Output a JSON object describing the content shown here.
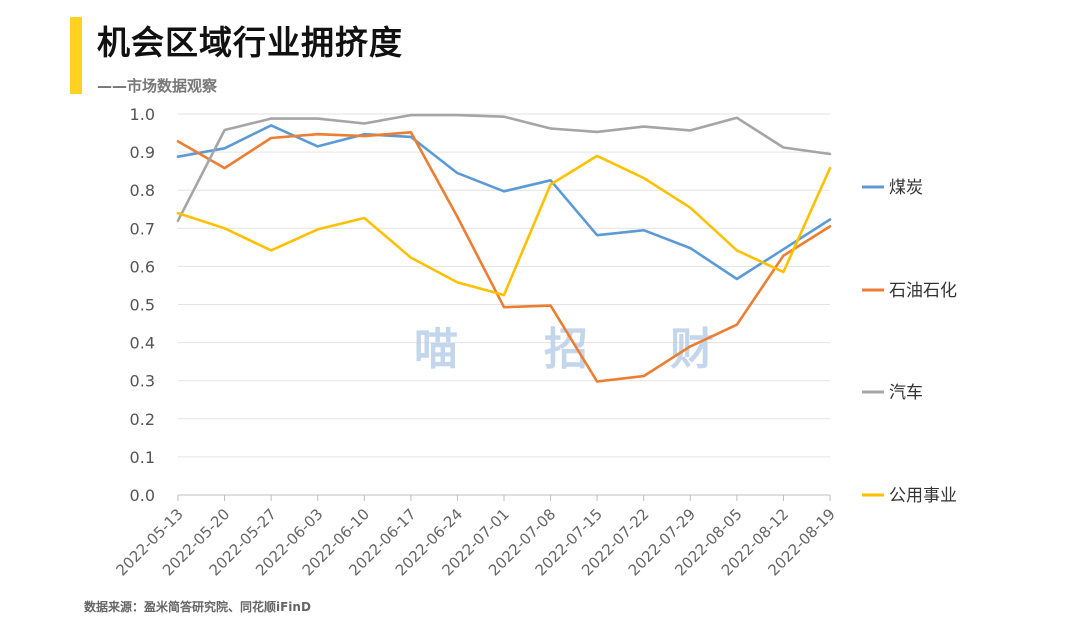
{
  "header": {
    "title": "机会区域行业拥挤度",
    "subtitle": "——市场数据观察"
  },
  "watermark": [
    "喵",
    "招",
    "财"
  ],
  "source": "数据来源：盈米简答研究院、同花顺iFinD",
  "chart_data": {
    "type": "line",
    "title": "",
    "xlabel": "",
    "ylabel": "",
    "ylim": [
      0,
      1.0
    ],
    "yticks": [
      "0.0",
      "0.1",
      "0.2",
      "0.3",
      "0.4",
      "0.5",
      "0.6",
      "0.7",
      "0.8",
      "0.9",
      "1.0"
    ],
    "grid": true,
    "legend_position": "right",
    "x": [
      "2022-05-13",
      "2022-05-20",
      "2022-05-27",
      "2022-06-03",
      "2022-06-10",
      "2022-06-17",
      "2022-06-24",
      "2022-07-01",
      "2022-07-08",
      "2022-07-15",
      "2022-07-22",
      "2022-07-29",
      "2022-08-05",
      "2022-08-12",
      "2022-08-19"
    ],
    "series": [
      {
        "name": "煤炭",
        "color": "#5b9bd5",
        "values": [
          0.888,
          0.91,
          0.97,
          0.915,
          0.947,
          0.94,
          0.845,
          0.797,
          0.826,
          0.682,
          0.695,
          0.648,
          0.567,
          0.645,
          0.723
        ]
      },
      {
        "name": "石油石化",
        "color": "#ed7d31",
        "values": [
          0.928,
          0.858,
          0.937,
          0.947,
          0.942,
          0.952,
          0.73,
          0.493,
          0.497,
          0.298,
          0.312,
          0.39,
          0.447,
          0.628,
          0.705
        ]
      },
      {
        "name": "汽车",
        "color": "#a5a5a5",
        "values": [
          0.72,
          0.958,
          0.988,
          0.988,
          0.975,
          0.997,
          0.997,
          0.993,
          0.962,
          0.953,
          0.967,
          0.957,
          0.99,
          0.912,
          0.895
        ]
      },
      {
        "name": "公用事业",
        "color": "#ffc000",
        "values": [
          0.74,
          0.7,
          0.642,
          0.697,
          0.727,
          0.623,
          0.558,
          0.525,
          0.815,
          0.89,
          0.832,
          0.754,
          0.642,
          0.585,
          0.858
        ]
      }
    ]
  }
}
